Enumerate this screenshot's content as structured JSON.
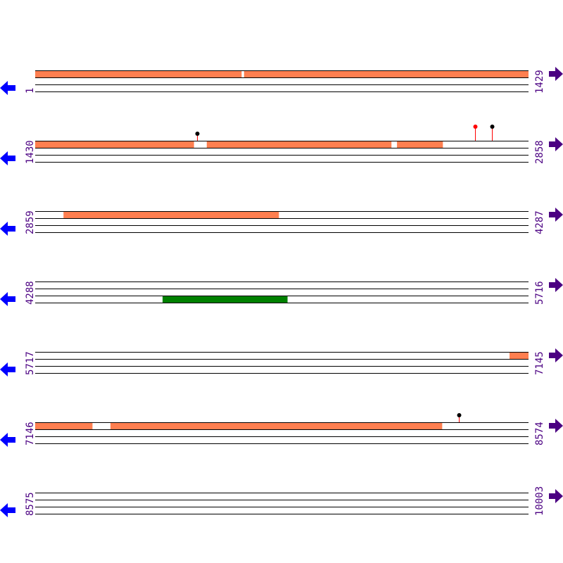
{
  "colors": {
    "track_line": "#000000",
    "orf_forward": "#ff7f50",
    "orf_reverse": "#008000",
    "left_arrow": "#0000ff",
    "right_arrow": "#4b0082",
    "label": "#4b0082",
    "site_red": "#ff0000",
    "site_black": "#000000"
  },
  "icons": {
    "left": "arrow-left-icon",
    "right": "arrow-right-icon"
  },
  "rows": [
    {
      "start": 1,
      "end": 1429,
      "start_label": "1",
      "end_label": "1429",
      "features": [
        {
          "from": 1,
          "to": 598,
          "lane": 0,
          "color": "#ff7f50"
        },
        {
          "from": 606,
          "to": 1429,
          "lane": 0,
          "color": "#ff7f50"
        }
      ],
      "sites": []
    },
    {
      "start": 1430,
      "end": 2858,
      "start_label": "1430",
      "end_label": "2858",
      "features": [
        {
          "from": 1430,
          "to": 1889,
          "lane": 0,
          "color": "#ff7f50"
        },
        {
          "from": 1927,
          "to": 2461,
          "lane": 0,
          "color": "#ff7f50"
        },
        {
          "from": 2478,
          "to": 2610,
          "lane": 0,
          "color": "#ff7f50"
        }
      ],
      "sites": [
        {
          "pos": 1899,
          "stem": "#ff0000",
          "head": "#000000",
          "tall": false
        },
        {
          "pos": 2704,
          "stem": "#ff0000",
          "head": "#ff0000",
          "tall": true
        },
        {
          "pos": 2753,
          "stem": "#ff0000",
          "head": "#000000",
          "tall": true
        }
      ]
    },
    {
      "start": 2859,
      "end": 4287,
      "start_label": "2859",
      "end_label": "4287",
      "features": [
        {
          "from": 2941,
          "to": 3564,
          "lane": 0,
          "color": "#ff7f50"
        }
      ],
      "sites": []
    },
    {
      "start": 4288,
      "end": 5716,
      "start_label": "4288",
      "end_label": "5716",
      "features": [
        {
          "from": 4657,
          "to": 5018,
          "lane": 2,
          "color": "#008000"
        }
      ],
      "sites": []
    },
    {
      "start": 5717,
      "end": 7145,
      "start_label": "5717",
      "end_label": "7145",
      "features": [
        {
          "from": 7091,
          "to": 7145,
          "lane": 0,
          "color": "#ff7f50"
        }
      ],
      "sites": []
    },
    {
      "start": 7146,
      "end": 8574,
      "start_label": "7146",
      "end_label": "8574",
      "features": [
        {
          "from": 7146,
          "to": 7311,
          "lane": 0,
          "color": "#ff7f50"
        },
        {
          "from": 7364,
          "to": 8324,
          "lane": 0,
          "color": "#ff7f50"
        }
      ],
      "sites": [
        {
          "pos": 8373,
          "stem": "#ff0000",
          "head": "#000000",
          "tall": false
        }
      ]
    },
    {
      "start": 8575,
      "end": 10003,
      "start_label": "8575",
      "end_label": "10003",
      "features": [],
      "sites": []
    }
  ]
}
